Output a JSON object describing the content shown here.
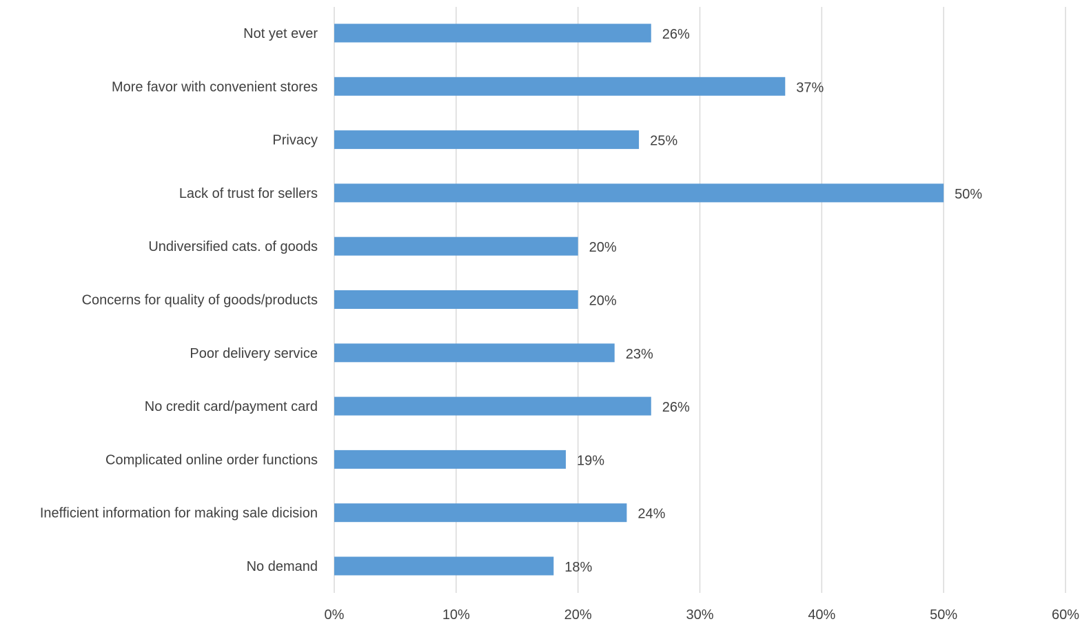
{
  "chart_data": {
    "type": "bar",
    "orientation": "horizontal",
    "categories": [
      "Not yet ever",
      "More favor with convenient stores",
      "Privacy",
      "Lack of trust for sellers",
      "Undiversified cats. of goods",
      "Concerns for quality of goods/products",
      "Poor delivery service",
      "No credit card/payment card",
      "Complicated online order functions",
      "Inefficient information for making sale dicision",
      "No demand"
    ],
    "values": [
      26,
      37,
      25,
      50,
      20,
      20,
      23,
      26,
      19,
      24,
      18
    ],
    "data_labels": [
      "26%",
      "37%",
      "25%",
      "50%",
      "20%",
      "20%",
      "23%",
      "26%",
      "19%",
      "24%",
      "18%"
    ],
    "xticks": [
      0,
      10,
      20,
      30,
      40,
      50,
      60
    ],
    "xtick_labels": [
      "0%",
      "10%",
      "20%",
      "30%",
      "40%",
      "50%",
      "60%"
    ],
    "xlim": [
      0,
      60
    ],
    "grid": true,
    "legend": "none",
    "title": "",
    "xlabel": "",
    "ylabel": "",
    "colors": {
      "bar": "#5b9bd5",
      "grid": "#d9d9d9",
      "text": "#404040"
    }
  }
}
